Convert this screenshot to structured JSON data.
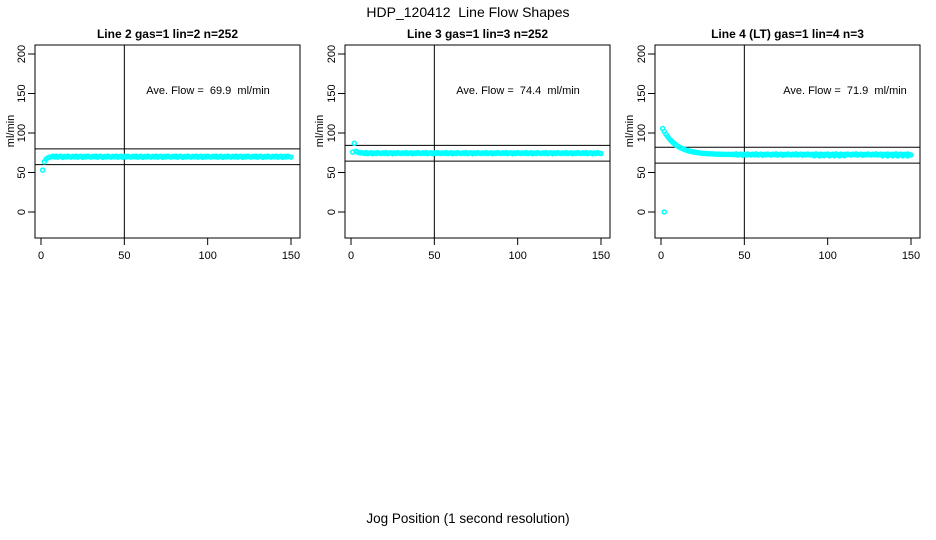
{
  "header": {
    "title": "HDP_120412  Line Flow Shapes"
  },
  "xlabel": "Jog Position (1 second resolution)",
  "colors": {
    "points": "#00FFFF",
    "axis": "#000000",
    "background": "#FFFFFF",
    "text": "#000000"
  },
  "chart_data": [
    {
      "type": "scatter",
      "title": "Line 2 gas=1 lin=2 n=252",
      "ylabel": "ml/min",
      "annotation": "Ave. Flow =  69.9  ml/min",
      "ave_flow": 69.9,
      "n": 252,
      "marker": "open-circle",
      "color": "#00FFFF",
      "xlim": [
        0,
        150
      ],
      "ylim": [
        0,
        200
      ],
      "x_ticks": [
        0,
        50,
        100,
        150
      ],
      "y_ticks": [
        0,
        50,
        100,
        150,
        200
      ],
      "ref_lines": {
        "h": [
          79.9,
          59.9
        ],
        "v": 50
      },
      "x_start": 1,
      "x_step": 1,
      "y": [
        53.0,
        63.5,
        66.8,
        68.4,
        69.2,
        69.7,
        70.4,
        69.7,
        70.8,
        69.4,
        70.1,
        70.5,
        69.2,
        70.2,
        69.6,
        70.7,
        69.9,
        69.5,
        70.4,
        69.7,
        70.8,
        69.4,
        70.1,
        70.5,
        69.2,
        70.2,
        69.6,
        70.7,
        69.9,
        69.5,
        70.4,
        69.7,
        70.8,
        69.4,
        70.1,
        70.5,
        69.2,
        70.2,
        69.6,
        70.7,
        69.9,
        69.5,
        70.4,
        69.7,
        70.8,
        69.4,
        70.1,
        70.5,
        69.2,
        70.2,
        69.6,
        70.7,
        69.9,
        69.5,
        70.4,
        69.7,
        70.8,
        69.4,
        70.1,
        70.5,
        69.2,
        70.2,
        69.6,
        70.7,
        69.9,
        69.5,
        70.4,
        69.7,
        70.8,
        69.4,
        70.1,
        70.5,
        69.2,
        70.2,
        69.6,
        70.7,
        69.9,
        69.5,
        70.4,
        69.7,
        70.8,
        69.4,
        70.1,
        70.5,
        69.2,
        70.2,
        69.6,
        70.7,
        69.9,
        69.5,
        70.4,
        69.7,
        70.8,
        69.4,
        70.1,
        70.5,
        69.2,
        70.2,
        69.6,
        70.7,
        69.9,
        69.5,
        70.4,
        69.7,
        70.8,
        69.4,
        70.1,
        70.5,
        69.2,
        70.2,
        69.6,
        70.7,
        69.9,
        69.5,
        70.4,
        69.7,
        70.8,
        69.4,
        70.1,
        70.5,
        69.2,
        70.2,
        69.6,
        70.7,
        69.9,
        69.5,
        70.4,
        69.7,
        70.8,
        69.4,
        70.1,
        70.5,
        69.2,
        70.2,
        69.6,
        70.7,
        69.9,
        69.5,
        70.4,
        69.7,
        70.8,
        69.4,
        70.1,
        70.5,
        69.2,
        70.2,
        69.6,
        70.7,
        69.9,
        69.5
      ],
      "extra_points": []
    },
    {
      "type": "scatter",
      "title": "Line 3 gas=1 lin=3 n=252",
      "ylabel": "ml/min",
      "annotation": "Ave. Flow =  74.4  ml/min",
      "ave_flow": 74.4,
      "n": 252,
      "marker": "open-circle",
      "color": "#00FFFF",
      "xlim": [
        0,
        150
      ],
      "ylim": [
        0,
        200
      ],
      "x_ticks": [
        0,
        50,
        100,
        150
      ],
      "y_ticks": [
        0,
        50,
        100,
        150,
        200
      ],
      "ref_lines": {
        "h": [
          84.4,
          64.4
        ],
        "v": 50
      },
      "x_start": 1,
      "x_step": 1,
      "y": [
        75.8,
        87.0,
        76.8,
        75.9,
        75.1,
        74.8,
        74.9,
        74.2,
        75.3,
        73.9,
        74.6,
        75.0,
        73.7,
        74.7,
        74.1,
        75.2,
        74.4,
        74.0,
        74.9,
        74.2,
        75.3,
        73.9,
        74.6,
        75.0,
        73.7,
        74.7,
        74.1,
        75.2,
        74.4,
        74.0,
        74.9,
        74.2,
        75.3,
        73.9,
        74.6,
        75.0,
        73.7,
        74.7,
        74.1,
        75.2,
        74.4,
        74.0,
        74.9,
        74.2,
        75.3,
        73.9,
        74.6,
        75.0,
        73.7,
        74.7,
        74.1,
        75.2,
        74.4,
        74.0,
        74.9,
        74.2,
        75.3,
        73.9,
        74.6,
        75.0,
        73.7,
        74.7,
        74.1,
        75.2,
        74.4,
        74.0,
        74.9,
        74.2,
        75.3,
        73.9,
        74.6,
        75.0,
        73.7,
        74.7,
        74.1,
        75.2,
        74.4,
        74.0,
        74.9,
        74.2,
        75.3,
        73.9,
        74.6,
        75.0,
        73.7,
        74.7,
        74.1,
        75.2,
        74.4,
        74.0,
        74.9,
        74.2,
        75.3,
        73.9,
        74.6,
        75.0,
        73.7,
        74.7,
        74.1,
        75.2,
        74.4,
        74.0,
        74.9,
        74.2,
        75.3,
        73.9,
        74.6,
        75.0,
        73.7,
        74.7,
        74.1,
        75.2,
        74.4,
        74.0,
        74.9,
        74.2,
        75.3,
        73.9,
        74.6,
        75.0,
        73.7,
        74.7,
        74.1,
        75.2,
        74.4,
        74.0,
        74.9,
        74.2,
        75.3,
        73.9,
        74.6,
        75.0,
        73.7,
        74.7,
        74.1,
        75.2,
        74.4,
        74.0,
        74.9,
        74.2,
        75.3,
        73.9,
        74.6,
        75.0,
        73.7,
        74.7,
        74.1,
        75.2,
        74.4,
        74.0
      ],
      "extra_points": []
    },
    {
      "type": "scatter",
      "title": "Line 4 (LT) gas=1 lin=4 n=3",
      "ylabel": "ml/min",
      "annotation": "Ave. Flow =  71.9  ml/min",
      "ave_flow": 71.9,
      "n": 3,
      "marker": "open-circle",
      "color": "#00FFFF",
      "xlim": [
        0,
        150
      ],
      "ylim": [
        0,
        200
      ],
      "x_ticks": [
        0,
        50,
        100,
        150
      ],
      "y_ticks": [
        0,
        50,
        100,
        150,
        200
      ],
      "ref_lines": {
        "h": [
          81.9,
          61.9
        ],
        "v": 50
      },
      "x_start": 1,
      "x_step": 1,
      "y": [
        105.7,
        101.8,
        98.4,
        95.4,
        92.7,
        90.4,
        88.3,
        86.5,
        84.8,
        83.4,
        82.2,
        81.0,
        80.1,
        79.2,
        78.4,
        77.8,
        77.2,
        76.6,
        76.2,
        75.8,
        75.4,
        75.1,
        74.8,
        74.6,
        74.3,
        74.2,
        74.0,
        73.8,
        73.7,
        73.6,
        73.5,
        73.4,
        73.3,
        73.2,
        73.2,
        73.1,
        73.1,
        73.0,
        73.0,
        72.9,
        72.9,
        72.8,
        73.1,
        72.4,
        73.5,
        72.1,
        72.8,
        73.2,
        71.9,
        72.9,
        72.3,
        73.4,
        72.6,
        72.2,
        73.1,
        72.4,
        73.5,
        72.1,
        72.8,
        73.2,
        71.9,
        72.9,
        72.3,
        73.4,
        72.6,
        72.2,
        73.1,
        72.4,
        73.5,
        72.1,
        72.8,
        73.2,
        71.9,
        72.9,
        72.3,
        73.4,
        72.6,
        72.2,
        73.1,
        72.4,
        73.5,
        72.1,
        72.8,
        73.2,
        71.9,
        72.9,
        72.3,
        73.4,
        72.6,
        72.2,
        73.1,
        72.4,
        73.5,
        72.1,
        72.8,
        73.2,
        71.9,
        72.9,
        72.3,
        73.4,
        72.6,
        72.2,
        73.1,
        72.4,
        73.5,
        72.1,
        72.8,
        73.2,
        71.9,
        72.9,
        72.3,
        73.4,
        72.6,
        72.2,
        73.1,
        72.4,
        73.5,
        72.1,
        72.8,
        73.2,
        71.9,
        72.9,
        72.3,
        73.4,
        72.6,
        72.2,
        73.1,
        72.4,
        73.5,
        72.1,
        72.8,
        73.2,
        71.9,
        72.9,
        72.3,
        73.4,
        72.6,
        72.2,
        73.1,
        72.4,
        73.5,
        72.1,
        72.8,
        73.2,
        71.9,
        72.9,
        72.3,
        73.4,
        72.6,
        72.2
      ],
      "extra_points": [
        [
          2,
          0
        ],
        [
          92,
          71.2
        ],
        [
          95,
          71.0
        ],
        [
          98,
          71.3
        ],
        [
          101,
          71.1
        ],
        [
          104,
          71.2
        ],
        [
          107,
          71.0
        ],
        [
          110,
          71.3
        ],
        [
          133,
          71.1
        ],
        [
          136,
          70.9
        ],
        [
          139,
          71.2
        ],
        [
          142,
          71.0
        ],
        [
          145,
          71.1
        ],
        [
          148,
          70.9
        ]
      ]
    }
  ]
}
